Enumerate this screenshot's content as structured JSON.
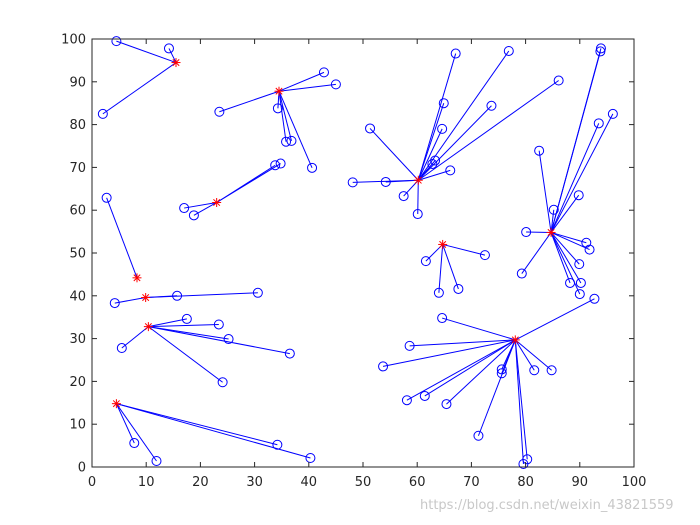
{
  "chart_data": {
    "type": "scatter",
    "xlim": [
      0,
      100
    ],
    "ylim": [
      0,
      100
    ],
    "x_ticks": [
      0,
      10,
      20,
      30,
      40,
      50,
      60,
      70,
      80,
      90,
      100
    ],
    "y_ticks": [
      0,
      10,
      20,
      30,
      40,
      50,
      60,
      70,
      80,
      90,
      100
    ],
    "grid": false,
    "box": true,
    "colors": {
      "line": "#0000ff",
      "point": "#0000ff",
      "center": "#ff0000",
      "axis": "#262626"
    },
    "clusters": [
      {
        "center": [
          15.5,
          94.5
        ],
        "points": [
          [
            4.5,
            99.5
          ],
          [
            14.2,
            97.8
          ],
          [
            2,
            82.5
          ]
        ]
      },
      {
        "center": [
          34.5,
          87.8
        ],
        "points": [
          [
            23.5,
            83
          ],
          [
            42.8,
            92.2
          ],
          [
            45,
            89.4
          ],
          [
            34.3,
            83.8
          ],
          [
            35.8,
            76
          ],
          [
            36.8,
            76.2
          ],
          [
            40.6,
            69.9
          ]
        ]
      },
      {
        "center": [
          23,
          61.8
        ],
        "points": [
          [
            17,
            60.5
          ],
          [
            18.8,
            58.8
          ],
          [
            33.8,
            70.5
          ],
          [
            34.8,
            70.9
          ]
        ]
      },
      {
        "center": [
          8.3,
          44.2
        ],
        "points": [
          [
            2.7,
            62.9
          ]
        ]
      },
      {
        "center": [
          9.9,
          39.6
        ],
        "points": [
          [
            4.2,
            38.3
          ],
          [
            15.7,
            40
          ],
          [
            30.6,
            40.7
          ]
        ]
      },
      {
        "center": [
          10.4,
          32.8
        ],
        "points": [
          [
            5.5,
            27.8
          ],
          [
            17.5,
            34.6
          ],
          [
            23.4,
            33.3
          ],
          [
            25.2,
            29.9
          ],
          [
            36.5,
            26.5
          ],
          [
            24.1,
            19.8
          ]
        ]
      },
      {
        "center": [
          4.5,
          14.8
        ],
        "points": [
          [
            7.8,
            5.6
          ],
          [
            11.9,
            1.4
          ],
          [
            34.2,
            5.2
          ],
          [
            40.3,
            2.1
          ]
        ]
      },
      {
        "center": [
          60.2,
          67
        ],
        "points": [
          [
            51.3,
            79.1
          ],
          [
            48.1,
            66.5
          ],
          [
            54.2,
            66.6
          ],
          [
            57.5,
            63.3
          ],
          [
            60.1,
            59.1
          ],
          [
            64.6,
            79
          ],
          [
            64.9,
            85
          ],
          [
            66.1,
            69.3
          ],
          [
            62.8,
            70.8
          ],
          [
            63.3,
            71.6
          ],
          [
            67.1,
            96.6
          ],
          [
            73.7,
            84.4
          ],
          [
            76.9,
            97.2
          ],
          [
            86.1,
            90.3
          ]
        ]
      },
      {
        "center": [
          64.7,
          52
        ],
        "points": [
          [
            61.6,
            48.1
          ],
          [
            64,
            40.7
          ],
          [
            67.6,
            41.6
          ],
          [
            72.5,
            49.5
          ]
        ]
      },
      {
        "center": [
          84.7,
          54.8
        ],
        "points": [
          [
            80.1,
            54.9
          ],
          [
            82.5,
            73.9
          ],
          [
            85.2,
            60.1
          ],
          [
            89.8,
            63.5
          ],
          [
            93.5,
            80.3
          ],
          [
            96.1,
            82.5
          ],
          [
            93.8,
            97.1
          ],
          [
            93.9,
            97.8
          ],
          [
            91.2,
            52.4
          ],
          [
            91.8,
            50.8
          ],
          [
            89.9,
            47.4
          ],
          [
            79.3,
            45.2
          ],
          [
            88.2,
            43
          ],
          [
            90.2,
            43
          ],
          [
            90,
            40.4
          ]
        ]
      },
      {
        "center": [
          78.1,
          29.7
        ],
        "points": [
          [
            64.6,
            34.8
          ],
          [
            58.6,
            28.3
          ],
          [
            53.7,
            23.5
          ],
          [
            58.1,
            15.6
          ],
          [
            61.4,
            16.6
          ],
          [
            65.4,
            14.7
          ],
          [
            71.3,
            7.3
          ],
          [
            75.6,
            22.8
          ],
          [
            75.6,
            21.9
          ],
          [
            79.6,
            0.7
          ],
          [
            80.3,
            1.8
          ],
          [
            81.6,
            22.6
          ],
          [
            84.8,
            22.6
          ],
          [
            92.7,
            39.3
          ]
        ]
      }
    ]
  },
  "watermark": "https://blog.csdn.net/weixin_43821559"
}
